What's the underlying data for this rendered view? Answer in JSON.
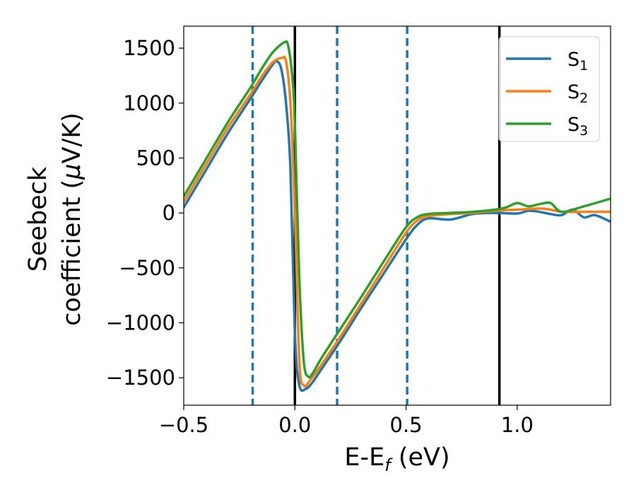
{
  "chart_data": {
    "type": "line",
    "title": "",
    "xlabel": "E-E",
    "xlabel_sub": "f",
    "xlabel_unit": " (eV)",
    "ylabel_line1": "Seebeck",
    "ylabel_line2": "coefficient  (",
    "ylabel_mu": "μ",
    "ylabel_unit": "V/K)",
    "xlim": [
      -0.5,
      1.42
    ],
    "ylim": [
      -1750,
      1700
    ],
    "xticks": [
      -0.5,
      0.0,
      0.5,
      1.0
    ],
    "xtick_labels": [
      "−0.5",
      "0.0",
      "0.5",
      "1.0"
    ],
    "yticks": [
      -1500,
      -1000,
      -500,
      0,
      500,
      1000,
      1500
    ],
    "ytick_labels": [
      "−1500",
      "−1000",
      "−500",
      "0",
      "500",
      "1000",
      "1500"
    ],
    "grid": false,
    "legend_position": "top-right",
    "vlines_dashed": {
      "x": [
        -0.19,
        0.19,
        0.505
      ],
      "color": "#1f77b4"
    },
    "vlines_solid": {
      "x": [
        0.0,
        0.92
      ],
      "color": "#000000"
    },
    "series": [
      {
        "name": "S",
        "sub": "1",
        "color": "#1f77b4",
        "points": [
          [
            -0.5,
            50
          ],
          [
            -0.4,
            390
          ],
          [
            -0.3,
            730
          ],
          [
            -0.2,
            1040
          ],
          [
            -0.15,
            1200
          ],
          [
            -0.1,
            1350
          ],
          [
            -0.08,
            1380
          ],
          [
            -0.06,
            1300
          ],
          [
            -0.04,
            1000
          ],
          [
            -0.02,
            400
          ],
          [
            0.0,
            -1100
          ],
          [
            0.02,
            -1570
          ],
          [
            0.05,
            -1600
          ],
          [
            0.08,
            -1540
          ],
          [
            0.12,
            -1420
          ],
          [
            0.2,
            -1180
          ],
          [
            0.3,
            -860
          ],
          [
            0.4,
            -550
          ],
          [
            0.5,
            -240
          ],
          [
            0.55,
            -110
          ],
          [
            0.6,
            -50
          ],
          [
            0.7,
            -60
          ],
          [
            0.8,
            -10
          ],
          [
            0.9,
            0
          ],
          [
            1.0,
            -5
          ],
          [
            1.05,
            20
          ],
          [
            1.1,
            10
          ],
          [
            1.15,
            -10
          ],
          [
            1.2,
            -20
          ],
          [
            1.25,
            30
          ],
          [
            1.3,
            -40
          ],
          [
            1.35,
            -20
          ],
          [
            1.42,
            -80
          ]
        ]
      },
      {
        "name": "S",
        "sub": "2",
        "color": "#ff7f0e",
        "points": [
          [
            -0.5,
            100
          ],
          [
            -0.4,
            440
          ],
          [
            -0.3,
            780
          ],
          [
            -0.2,
            1080
          ],
          [
            -0.15,
            1240
          ],
          [
            -0.1,
            1370
          ],
          [
            -0.06,
            1410
          ],
          [
            -0.04,
            1380
          ],
          [
            -0.02,
            1000
          ],
          [
            0.0,
            0
          ],
          [
            0.02,
            -1350
          ],
          [
            0.04,
            -1570
          ],
          [
            0.07,
            -1520
          ],
          [
            0.12,
            -1380
          ],
          [
            0.2,
            -1140
          ],
          [
            0.3,
            -820
          ],
          [
            0.4,
            -500
          ],
          [
            0.5,
            -180
          ],
          [
            0.55,
            -70
          ],
          [
            0.6,
            -30
          ],
          [
            0.7,
            -10
          ],
          [
            0.8,
            0
          ],
          [
            0.9,
            20
          ],
          [
            1.0,
            30
          ],
          [
            1.1,
            40
          ],
          [
            1.15,
            30
          ],
          [
            1.2,
            10
          ],
          [
            1.3,
            10
          ],
          [
            1.42,
            10
          ]
        ]
      },
      {
        "name": "S",
        "sub": "3",
        "color": "#2ca02c",
        "points": [
          [
            -0.5,
            150
          ],
          [
            -0.4,
            490
          ],
          [
            -0.3,
            830
          ],
          [
            -0.2,
            1140
          ],
          [
            -0.15,
            1310
          ],
          [
            -0.1,
            1460
          ],
          [
            -0.05,
            1550
          ],
          [
            -0.03,
            1520
          ],
          [
            -0.01,
            1200
          ],
          [
            0.0,
            800
          ],
          [
            0.02,
            -600
          ],
          [
            0.04,
            -1350
          ],
          [
            0.06,
            -1490
          ],
          [
            0.08,
            -1460
          ],
          [
            0.12,
            -1320
          ],
          [
            0.2,
            -1070
          ],
          [
            0.3,
            -760
          ],
          [
            0.4,
            -440
          ],
          [
            0.5,
            -130
          ],
          [
            0.55,
            -40
          ],
          [
            0.6,
            -10
          ],
          [
            0.7,
            0
          ],
          [
            0.8,
            10
          ],
          [
            0.9,
            30
          ],
          [
            0.95,
            50
          ],
          [
            1.0,
            90
          ],
          [
            1.05,
            60
          ],
          [
            1.1,
            80
          ],
          [
            1.15,
            90
          ],
          [
            1.2,
            10
          ],
          [
            1.3,
            60
          ],
          [
            1.42,
            130
          ]
        ]
      }
    ]
  }
}
